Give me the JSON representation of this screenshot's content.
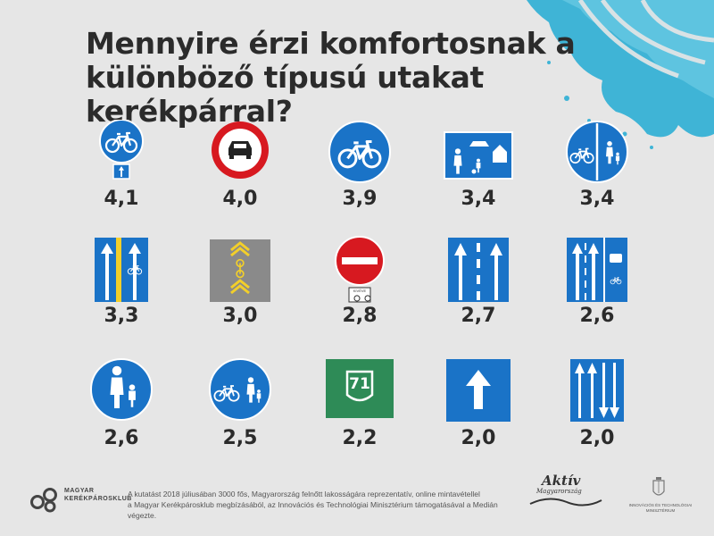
{
  "title": {
    "line1": "Mennyire érzi komfortosnak a",
    "line2": "különböző típusú utakat kerékpárral?"
  },
  "signs": [
    {
      "id": "cycle-path-arrow",
      "score": "4,1"
    },
    {
      "id": "no-motor-vehicles",
      "score": "4,0"
    },
    {
      "id": "cycle-path",
      "score": "3,9"
    },
    {
      "id": "residential-zone",
      "score": "3,4"
    },
    {
      "id": "segregated-cycle-pedestrian",
      "score": "3,4"
    },
    {
      "id": "cycle-lane",
      "score": "3,3"
    },
    {
      "id": "sharrow",
      "score": "3,0"
    },
    {
      "id": "no-entry-except-bicycles",
      "score": "2,8",
      "plate": "KIVÉVE"
    },
    {
      "id": "lane-arrows-3",
      "score": "2,7"
    },
    {
      "id": "bus-bike-lane",
      "score": "2,6"
    },
    {
      "id": "pedestrian-path",
      "score": "2,6"
    },
    {
      "id": "shared-cycle-pedestrian",
      "score": "2,5"
    },
    {
      "id": "road-number",
      "score": "2,2",
      "number": "71"
    },
    {
      "id": "one-way",
      "score": "2,0"
    },
    {
      "id": "lane-arrows-4-opposite",
      "score": "2,0"
    }
  ],
  "footer": {
    "line1": "A kutatást 2018 júliusában 3000 fős, Magyarország felnőtt lakosságára reprezentatív, online mintavétellel",
    "line2": "a Magyar Kerékpárosklub megbízásából, az Innovációs és Technológiai Minisztérium támogatásával a Medián végezte.",
    "logo_mkk_line1": "MAGYAR",
    "logo_mkk_line2": "KERÉKPÁROSKLUB",
    "logo_aktiv_line1": "Aktív",
    "logo_aktiv_line2": "Magyarország",
    "logo_itm": "INNOVÁCIÓS ÉS TECHNOLÓGIAI MINISZTÉRIUM"
  },
  "colors": {
    "sign_blue": "#1a73c7",
    "sign_red": "#d71920",
    "splash": "#3fb4d6",
    "road_green": "#2e8b57",
    "text": "#2b2b2b"
  }
}
